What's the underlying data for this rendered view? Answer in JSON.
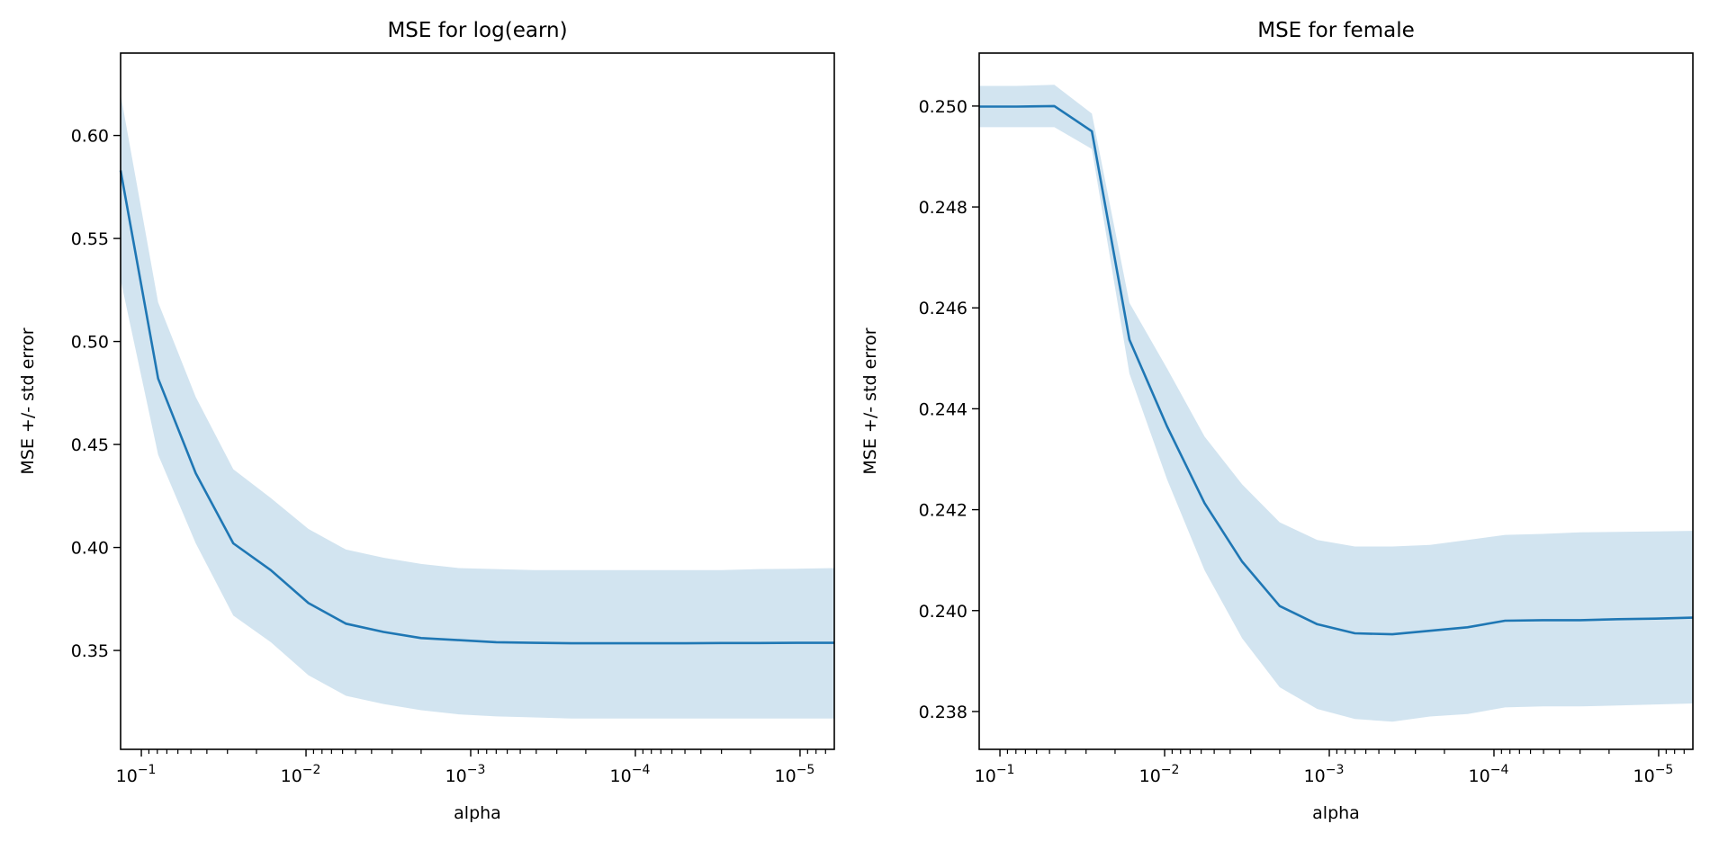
{
  "chart_data": [
    {
      "type": "line",
      "title": "MSE for log(earn)",
      "xlabel": "alpha",
      "ylabel": "MSE +/- std error",
      "xscale": "log",
      "x_inverted": true,
      "xlim": [
        0.1337,
        6.2e-06
      ],
      "ylim": [
        0.302,
        0.64
      ],
      "log_range": [
        -0.874,
        -5.208
      ],
      "n_points": 20,
      "xticks": [
        {
          "base": "10",
          "exp": "−1",
          "value": 0.1
        },
        {
          "base": "10",
          "exp": "−2",
          "value": 0.01
        },
        {
          "base": "10",
          "exp": "−3",
          "value": 0.001
        },
        {
          "base": "10",
          "exp": "−4",
          "value": 0.0001
        },
        {
          "base": "10",
          "exp": "−5",
          "value": 1e-05
        }
      ],
      "yticks": [
        "0.35",
        "0.40",
        "0.45",
        "0.50",
        "0.55",
        "0.60"
      ],
      "series": [
        {
          "name": "MSE",
          "color": "#1f77b4",
          "values": [
            0.583,
            0.482,
            0.436,
            0.402,
            0.389,
            0.373,
            0.363,
            0.359,
            0.356,
            0.355,
            0.354,
            0.3537,
            0.3535,
            0.3535,
            0.3535,
            0.3535,
            0.3536,
            0.3536,
            0.3537,
            0.3537
          ]
        },
        {
          "name": "upper",
          "values": [
            0.62,
            0.519,
            0.473,
            0.438,
            0.424,
            0.409,
            0.399,
            0.395,
            0.392,
            0.39,
            0.3895,
            0.389,
            0.389,
            0.389,
            0.389,
            0.389,
            0.389,
            0.3895,
            0.3897,
            0.39
          ]
        },
        {
          "name": "lower",
          "values": [
            0.53,
            0.445,
            0.402,
            0.367,
            0.354,
            0.338,
            0.328,
            0.324,
            0.321,
            0.319,
            0.318,
            0.3175,
            0.317,
            0.317,
            0.317,
            0.317,
            0.317,
            0.317,
            0.317,
            0.317
          ]
        }
      ],
      "band_color": "#1f77b4"
    },
    {
      "type": "line",
      "title": "MSE for female",
      "xlabel": "alpha",
      "ylabel": "MSE +/- std error",
      "xscale": "log",
      "x_inverted": true,
      "xlim": [
        0.1337,
        6.2e-06
      ],
      "ylim": [
        0.23725,
        0.25105
      ],
      "log_range": [
        -0.874,
        -5.208
      ],
      "n_points": 20,
      "xticks": [
        {
          "base": "10",
          "exp": "−1",
          "value": 0.1
        },
        {
          "base": "10",
          "exp": "−2",
          "value": 0.01
        },
        {
          "base": "10",
          "exp": "−3",
          "value": 0.001
        },
        {
          "base": "10",
          "exp": "−4",
          "value": 0.0001
        },
        {
          "base": "10",
          "exp": "−5",
          "value": 1e-05
        }
      ],
      "yticks": [
        "0.238",
        "0.240",
        "0.242",
        "0.244",
        "0.246",
        "0.248",
        "0.250"
      ],
      "series": [
        {
          "name": "MSE",
          "color": "#1f77b4",
          "values": [
            0.24999,
            0.24999,
            0.25,
            0.2495,
            0.24537,
            0.24365,
            0.24213,
            0.24097,
            0.24009,
            0.23973,
            0.23955,
            0.23953,
            0.2396,
            0.23967,
            0.2398,
            0.23981,
            0.23981,
            0.23983,
            0.23984,
            0.23986
          ]
        },
        {
          "name": "upper",
          "values": [
            0.2504,
            0.2504,
            0.25042,
            0.24985,
            0.2461,
            0.2448,
            0.24345,
            0.2425,
            0.24175,
            0.2414,
            0.24127,
            0.24127,
            0.2413,
            0.2414,
            0.2415,
            0.24152,
            0.24155,
            0.24156,
            0.24157,
            0.24158
          ]
        },
        {
          "name": "lower",
          "values": [
            0.24958,
            0.24958,
            0.24958,
            0.24915,
            0.2447,
            0.2426,
            0.2408,
            0.23945,
            0.23848,
            0.23805,
            0.23785,
            0.2378,
            0.2379,
            0.23795,
            0.23808,
            0.2381,
            0.2381,
            0.23812,
            0.23814,
            0.23816
          ]
        }
      ],
      "band_color": "#1f77b4"
    }
  ]
}
